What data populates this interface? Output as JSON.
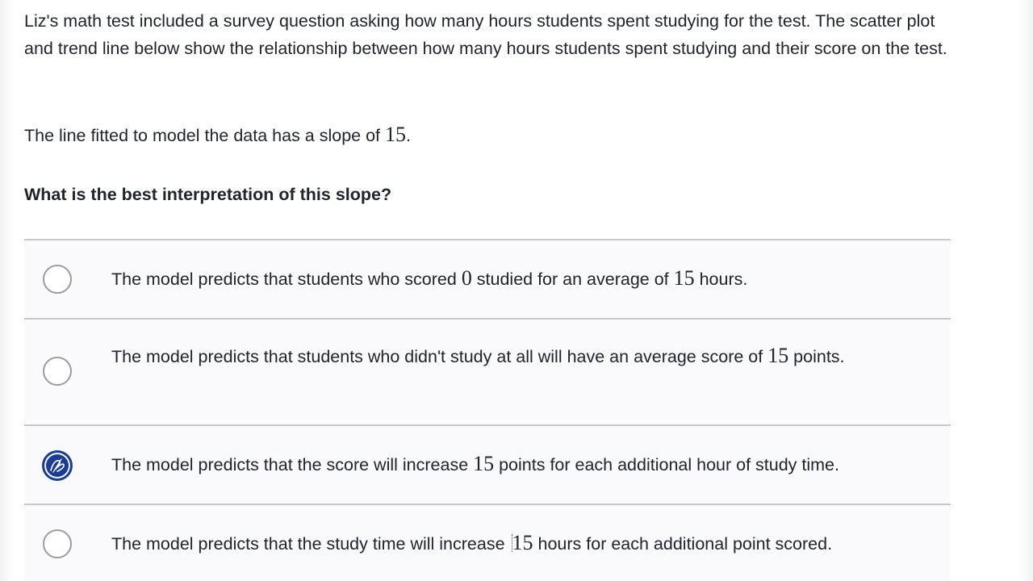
{
  "prompt": {
    "text": "Liz's math test included a survey question asking how many hours students spent studying for the test. The scatter plot and trend line below show the relationship between how many hours students spent studying and their score on the test."
  },
  "slope_statement": {
    "before": "The line fitted to model the data has a slope of ",
    "value": "15",
    "after": "."
  },
  "question": "What is the best interpretation of this slope?",
  "choices": [
    {
      "selected": false,
      "parts": [
        "The model predicts that students who scored ",
        "0",
        " studied for an average of ",
        "15",
        " hours."
      ]
    },
    {
      "selected": false,
      "parts": [
        "The model predicts that students who didn't study at all will have an average score of ",
        "15",
        " points."
      ]
    },
    {
      "selected": true,
      "parts": [
        "The model predicts that the score will increase ",
        "15",
        " points for each additional hour of study time."
      ]
    },
    {
      "selected": false,
      "parts": [
        "The model predicts that the study time will increase ",
        "15",
        " hours for each additional point scored."
      ]
    }
  ],
  "colors": {
    "selected_radio": "#1c3d94",
    "choice_background": "#fafafc",
    "divider": "#c8c8c8",
    "text": "#21242c"
  },
  "icons": {
    "selected_marker": "pen-scribble-icon"
  }
}
